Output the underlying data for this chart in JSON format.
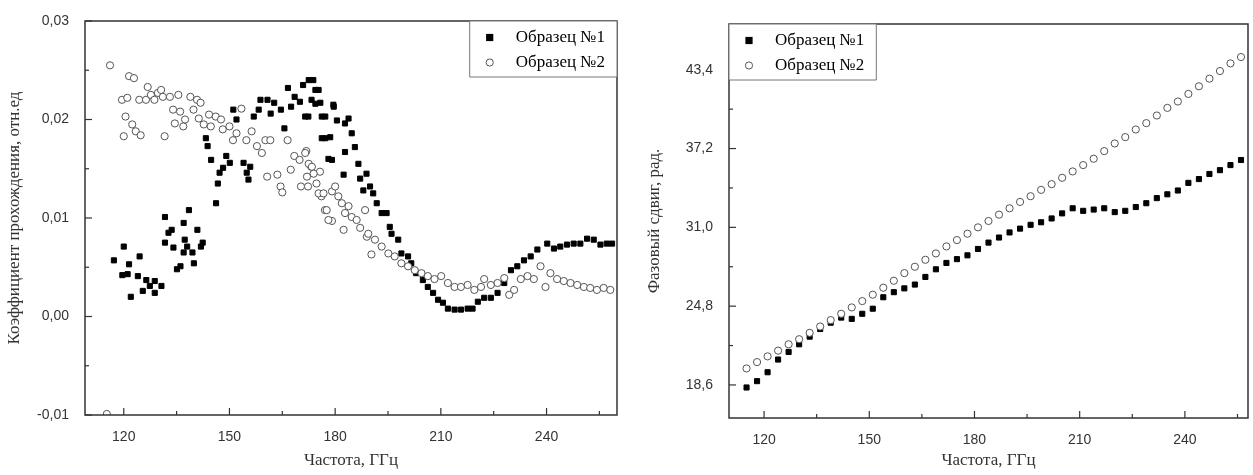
{
  "chart_data": [
    {
      "type": "scatter",
      "xlabel": "Частота, ГГц",
      "ylabel": "Коэффициент прохождения, отн.ед",
      "xlim": [
        109,
        260
      ],
      "ylim": [
        -0.01,
        0.03
      ],
      "xticks": [
        120,
        {
          "value": 135,
          "label": null
        },
        150,
        {
          "value": 165,
          "label": null
        },
        180,
        {
          "value": 195,
          "label": null
        },
        210,
        {
          "value": 225,
          "label": null
        },
        240,
        {
          "value": 255,
          "label": null
        }
      ],
      "yticks": [
        {
          "value": -0.01,
          "label": "-0,01"
        },
        {
          "value": -0.005,
          "label": null
        },
        {
          "value": 0,
          "label": "0,00"
        },
        {
          "value": 0.005,
          "label": null
        },
        {
          "value": 0.01,
          "label": "0,01"
        },
        {
          "value": 0.015,
          "label": null
        },
        {
          "value": 0.02,
          "label": "0,02"
        },
        {
          "value": 0.025,
          "label": null
        },
        {
          "value": 0.03,
          "label": "0,03"
        }
      ],
      "legend": "top right",
      "series": [
        {
          "name": "Образец №1",
          "color": "#000000",
          "marker": "square",
          "x": [
            117.2,
            120.0,
            121.5,
            121.1,
            119.6,
            122.0,
            124.5,
            124.0,
            125.4,
            126.4,
            127.4,
            128.8,
            128.8,
            130.7,
            131.7,
            131.7,
            132.7,
            133.6,
            134.1,
            135.1,
            136.1,
            137.0,
            138.5,
            137.0,
            137.3,
            138.0,
            139.5,
            139.9,
            140.9,
            141.9,
            142.4,
            143.3,
            143.8,
            144.8,
            146.2,
            146.7,
            147.2,
            148.2,
            149.1,
            150.1,
            151.1,
            152.0,
            154.0,
            154.9,
            155.4,
            155.9,
            156.9,
            158.3,
            158.8,
            160.8,
            161.7,
            162.7,
            164.6,
            165.6,
            166.6,
            167.5,
            168.5,
            170.0,
            170.9,
            172.4,
            173.3,
            173.8,
            175.3,
            175.8,
            177.2,
            177.2,
            179.1,
            179.6,
            172.5,
            174.4,
            174.4,
            171.5,
            176.2,
            176.2,
            178.6,
            178.1,
            179.5,
            180.5,
            182.8,
            182.4,
            183.8,
            184.7,
            182.8,
            185.6,
            186.6,
            187.1,
            188.0,
            188.9,
            189.9,
            190.8,
            191.8,
            193.2,
            194.6,
            195.5,
            196.0,
            197.9,
            198.8,
            200.7,
            201.6,
            203.0,
            204.9,
            206.3,
            207.8,
            209.2,
            210.6,
            212.0,
            213.9,
            215.7,
            217.6,
            219.0,
            220.5,
            222.3,
            224.2,
            226.1,
            228.0,
            229.9,
            231.7,
            233.6,
            235.5,
            237.4,
            240.2,
            242.1,
            243.9,
            245.8,
            247.7,
            249.6,
            251.5,
            253.4,
            255.3,
            257.1,
            258.6
          ],
          "values": [
            0.0057,
            0.0071,
            0.0053,
            0.0043,
            0.0042,
            0.002,
            0.0061,
            0.0041,
            0.0026,
            0.0037,
            0.0031,
            0.0036,
            0.0024,
            0.0031,
            0.0101,
            0.0075,
            0.0085,
            0.0088,
            0.007,
            0.0048,
            0.0051,
            0.0065,
            0.0108,
            0.0095,
            0.0078,
            0.0071,
            0.0065,
            0.0054,
            0.0088,
            0.0071,
            0.0075,
            0.0181,
            0.0173,
            0.0159,
            0.0115,
            0.0135,
            0.0146,
            0.0151,
            0.0163,
            0.0156,
            0.021,
            0.02,
            0.0156,
            0.0146,
            0.0139,
            0.0152,
            0.0203,
            0.021,
            0.022,
            0.022,
            0.0206,
            0.0217,
            0.021,
            0.0191,
            0.0232,
            0.0213,
            0.0223,
            0.0218,
            0.0235,
            0.0203,
            0.022,
            0.024,
            0.023,
            0.0217,
            0.0203,
            0.0181,
            0.0159,
            0.0213,
            0.024,
            0.023,
            0.0216,
            0.0203,
            0.0203,
            0.0181,
            0.0182,
            0.016,
            0.0215,
            0.0199,
            0.0196,
            0.0144,
            0.0201,
            0.0186,
            0.0167,
            0.0172,
            0.0155,
            0.014,
            0.0128,
            0.0145,
            0.0132,
            0.0125,
            0.0115,
            0.0105,
            0.0105,
            0.0091,
            0.0084,
            0.0078,
            0.0064,
            0.0061,
            0.0054,
            0.0044,
            0.0037,
            0.003,
            0.0024,
            0.0017,
            0.0014,
            0.0008,
            0.0007,
            0.0007,
            0.0008,
            0.0008,
            0.0015,
            0.0019,
            0.0019,
            0.0024,
            0.0034,
            0.0047,
            0.0051,
            0.0057,
            0.0061,
            0.0068,
            0.0074,
            0.0069,
            0.0071,
            0.0073,
            0.0074,
            0.0074,
            0.0079,
            0.0078,
            0.0073,
            0.0074,
            0.0074
          ]
        },
        {
          "name": "Образец №2",
          "color": "#555555",
          "marker": "circle",
          "x": [
            115.2,
            116.1,
            121.5,
            122.9,
            119.5,
            121.0,
            120.0,
            120.5,
            122.4,
            123.4,
            124.8,
            124.4,
            126.8,
            126.3,
            127.7,
            128.7,
            129.7,
            130.6,
            131.6,
            131.1,
            133.1,
            135.5,
            134.0,
            134.5,
            136.0,
            136.9,
            137.4,
            138.9,
            139.8,
            140.8,
            141.8,
            141.3,
            142.7,
            144.2,
            144.7,
            146.1,
            147.6,
            148.1,
            150.0,
            151.0,
            152.0,
            153.4,
            154.8,
            156.3,
            157.8,
            159.2,
            160.2,
            160.7,
            161.6,
            163.6,
            164.5,
            165.0,
            166.5,
            167.4,
            168.4,
            169.9,
            170.3,
            171.8,
            172.3,
            173.2,
            174.7,
            176.1,
            177.1,
            179.1,
            175.7,
            171.5,
            172.5,
            173.4,
            173.9,
            172.0,
            175.3,
            176.7,
            177.6,
            178.1,
            179.1,
            180.0,
            180.9,
            181.9,
            182.8,
            182.4,
            183.8,
            184.7,
            186.1,
            187.1,
            188.5,
            189.0,
            190.3,
            189.4,
            191.3,
            193.2,
            195.1,
            196.9,
            198.8,
            200.7,
            202.6,
            204.5,
            206.3,
            208.2,
            210.1,
            212.0,
            213.9,
            215.7,
            217.6,
            219.5,
            221.4,
            222.3,
            224.2,
            226.1,
            228.0,
            229.4,
            230.8,
            232.7,
            234.6,
            236.4,
            238.3,
            239.7,
            241.1,
            243.0,
            244.9,
            246.8,
            248.7,
            250.6,
            252.4,
            254.3,
            256.2,
            258.1
          ],
          "values": [
            -0.0099,
            0.0255,
            0.0244,
            0.0242,
            0.022,
            0.0222,
            0.0183,
            0.0203,
            0.0195,
            0.0188,
            0.0184,
            0.022,
            0.0233,
            0.022,
            0.0225,
            0.022,
            0.0227,
            0.023,
            0.0183,
            0.0223,
            0.0223,
            0.0225,
            0.021,
            0.0196,
            0.0208,
            0.0193,
            0.02,
            0.0223,
            0.021,
            0.022,
            0.0217,
            0.0201,
            0.0195,
            0.0205,
            0.0193,
            0.0203,
            0.02,
            0.019,
            0.0193,
            0.0179,
            0.0186,
            0.0211,
            0.0179,
            0.0188,
            0.0173,
            0.0166,
            0.0179,
            0.0142,
            0.0179,
            0.0144,
            0.0132,
            0.0126,
            0.0179,
            0.0149,
            0.0163,
            0.0159,
            0.0132,
            0.0168,
            0.0132,
            0.0152,
            0.0135,
            0.0122,
            0.0108,
            0.0097,
            0.0147,
            0.0166,
            0.0155,
            0.0152,
            0.0145,
            0.0142,
            0.0125,
            0.0125,
            0.0108,
            0.0098,
            0.0127,
            0.0132,
            0.0122,
            0.0115,
            0.0105,
            0.0088,
            0.0112,
            0.0101,
            0.0098,
            0.009,
            0.0108,
            0.0081,
            0.0063,
            0.0084,
            0.0078,
            0.0071,
            0.0064,
            0.0061,
            0.0054,
            0.0051,
            0.0047,
            0.0044,
            0.0041,
            0.0038,
            0.0041,
            0.0034,
            0.003,
            0.003,
            0.0032,
            0.0027,
            0.003,
            0.0038,
            0.0032,
            0.0034,
            0.0039,
            0.0022,
            0.0027,
            0.0038,
            0.0041,
            0.0038,
            0.0051,
            0.003,
            0.0044,
            0.0038,
            0.0036,
            0.0034,
            0.0032,
            0.003,
            0.0029,
            0.0027,
            0.0029,
            0.0027
          ]
        }
      ]
    },
    {
      "type": "scatter",
      "xlabel": "Частота, ГГц",
      "ylabel": "Фазовый сдвиг, рад.",
      "xlim": [
        110,
        258
      ],
      "ylim": [
        16,
        47
      ],
      "xticks": [
        120,
        {
          "value": 135,
          "label": null
        },
        150,
        {
          "value": 165,
          "label": null
        },
        180,
        {
          "value": 195,
          "label": null
        },
        210,
        {
          "value": 225,
          "label": null
        },
        240,
        {
          "value": 255,
          "label": null
        }
      ],
      "yticks": [
        {
          "value": 18.6,
          "label": "18,6"
        },
        {
          "value": 21.7,
          "label": null
        },
        {
          "value": 24.8,
          "label": "24,8"
        },
        {
          "value": 27.9,
          "label": null
        },
        {
          "value": 31,
          "label": "31,0"
        },
        {
          "value": 34.1,
          "label": null
        },
        {
          "value": 37.2,
          "label": "37,2"
        },
        {
          "value": 40.3,
          "label": null
        },
        {
          "value": 43.4,
          "label": "43,4"
        },
        {
          "value": 46.5,
          "label": null
        }
      ],
      "legend": "top left",
      "series": [
        {
          "name": "Образец №1",
          "color": "#000000",
          "marker": "square",
          "x": [
            115,
            118,
            121,
            124,
            127,
            130,
            133,
            136,
            139,
            142,
            145,
            148,
            151,
            154,
            157,
            160,
            163,
            166,
            169,
            172,
            175,
            178,
            181,
            184,
            187,
            190,
            193,
            196,
            199,
            202,
            205,
            208,
            211,
            214,
            217,
            220,
            223,
            226,
            229,
            232,
            235,
            238,
            241,
            244,
            247,
            250,
            253,
            256
          ],
          "values": [
            18.4,
            18.9,
            19.6,
            20.6,
            21.2,
            21.8,
            22.4,
            23.0,
            23.5,
            23.9,
            23.8,
            24.2,
            24.6,
            25.5,
            25.9,
            26.2,
            26.5,
            27.1,
            27.7,
            28.2,
            28.5,
            28.8,
            29.3,
            29.8,
            30.2,
            30.6,
            30.9,
            31.2,
            31.4,
            31.7,
            32.1,
            32.5,
            32.3,
            32.4,
            32.5,
            32.2,
            32.3,
            32.6,
            32.9,
            33.3,
            33.6,
            33.9,
            34.5,
            34.8,
            35.2,
            35.5,
            35.9,
            36.3
          ]
        },
        {
          "name": "Образец №2",
          "color": "#555555",
          "marker": "circle",
          "x": [
            115,
            118,
            121,
            124,
            127,
            130,
            133,
            136,
            139,
            142,
            145,
            148,
            151,
            154,
            157,
            160,
            163,
            166,
            169,
            172,
            175,
            178,
            181,
            184,
            187,
            190,
            193,
            196,
            199,
            202,
            205,
            208,
            211,
            214,
            217,
            220,
            223,
            226,
            229,
            232,
            235,
            238,
            241,
            244,
            247,
            250,
            253,
            256
          ],
          "values": [
            19.9,
            20.4,
            20.85,
            21.3,
            21.8,
            22.2,
            22.7,
            23.2,
            23.7,
            24.2,
            24.7,
            25.2,
            25.7,
            26.25,
            26.8,
            27.4,
            27.9,
            28.45,
            28.95,
            29.5,
            30.0,
            30.5,
            31.0,
            31.5,
            32.0,
            32.5,
            33.0,
            33.45,
            33.95,
            34.4,
            34.9,
            35.4,
            35.9,
            36.4,
            37.0,
            37.6,
            38.1,
            38.7,
            39.2,
            39.8,
            40.4,
            40.9,
            41.5,
            42.1,
            42.7,
            43.3,
            43.9,
            44.4
          ]
        }
      ]
    }
  ]
}
